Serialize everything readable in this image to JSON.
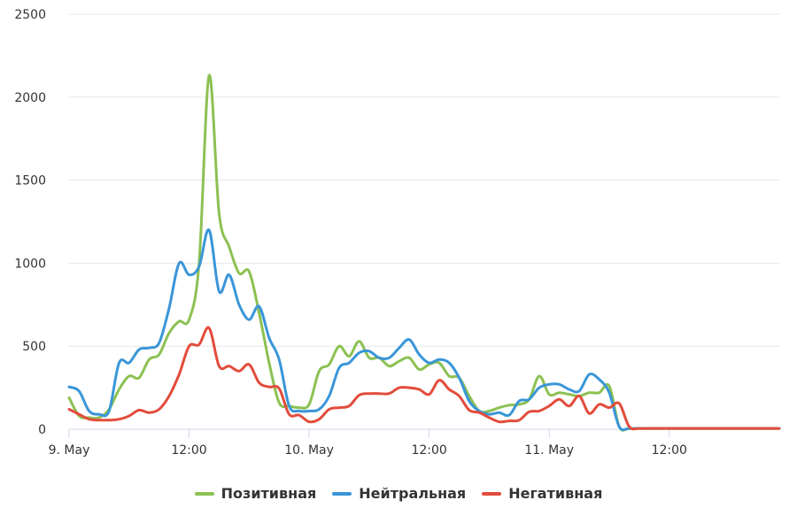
{
  "chart_data": {
    "type": "line",
    "title": "",
    "xlabel": "",
    "ylabel": "",
    "ylim": [
      0,
      2500
    ],
    "yticks": [
      0,
      500,
      1000,
      1500,
      2000,
      2500
    ],
    "xlim": [
      0,
      71
    ],
    "xticks": [
      {
        "x": 0,
        "label": "9. May"
      },
      {
        "x": 12,
        "label": "12:00"
      },
      {
        "x": 24,
        "label": "10. May"
      },
      {
        "x": 36,
        "label": "12:00"
      },
      {
        "x": 48,
        "label": "11. May"
      },
      {
        "x": 60,
        "label": "12:00"
      }
    ],
    "grid": true,
    "legend": "bottom-center",
    "x": [
      0,
      1,
      2,
      3,
      4,
      5,
      6,
      7,
      8,
      9,
      10,
      11,
      12,
      13,
      14,
      15,
      16,
      17,
      18,
      19,
      20,
      21,
      22,
      23,
      24,
      25,
      26,
      27,
      28,
      29,
      30,
      31,
      32,
      33,
      34,
      35,
      36,
      37,
      38,
      39,
      40,
      41,
      42,
      43,
      44,
      45,
      46,
      47,
      48,
      49,
      50,
      51,
      52,
      53,
      54,
      55,
      56,
      57,
      58,
      59,
      60,
      61,
      62,
      63,
      64,
      65,
      66,
      67,
      68,
      69,
      70,
      71
    ],
    "series": [
      {
        "name": "Позитивная",
        "color": "#8cc152",
        "values": [
          190,
          80,
          70,
          70,
          120,
          240,
          320,
          310,
          420,
          450,
          580,
          650,
          660,
          1000,
          2130,
          1300,
          1100,
          940,
          950,
          700,
          400,
          160,
          140,
          130,
          150,
          350,
          390,
          500,
          440,
          530,
          430,
          430,
          380,
          410,
          430,
          360,
          390,
          400,
          320,
          310,
          200,
          110,
          110,
          130,
          145,
          150,
          180,
          320,
          210,
          220,
          210,
          200,
          220,
          220,
          260,
          15,
          5,
          5,
          5,
          5,
          5,
          5,
          5,
          5,
          5,
          5,
          5,
          5,
          5,
          5,
          5,
          5
        ]
      },
      {
        "name": "Нейтральная",
        "color": "#3a96d8",
        "values": [
          255,
          230,
          110,
          90,
          110,
          400,
          400,
          480,
          490,
          520,
          730,
          1000,
          930,
          980,
          1200,
          830,
          930,
          750,
          660,
          740,
          550,
          420,
          140,
          110,
          110,
          120,
          200,
          370,
          400,
          460,
          470,
          430,
          430,
          490,
          540,
          450,
          400,
          420,
          400,
          310,
          170,
          110,
          90,
          100,
          85,
          170,
          180,
          250,
          270,
          270,
          240,
          230,
          330,
          300,
          220,
          15,
          5,
          5,
          5,
          5,
          5,
          5,
          5,
          5,
          5,
          5,
          5,
          5,
          5,
          5,
          5,
          5
        ]
      },
      {
        "name": "Негативная",
        "color": "#e24c3b",
        "values": [
          120,
          90,
          60,
          55,
          55,
          60,
          80,
          115,
          100,
          120,
          200,
          330,
          500,
          510,
          610,
          380,
          380,
          350,
          390,
          280,
          255,
          245,
          90,
          85,
          45,
          60,
          120,
          130,
          140,
          205,
          215,
          215,
          215,
          250,
          250,
          240,
          210,
          295,
          240,
          200,
          115,
          100,
          70,
          45,
          50,
          55,
          105,
          110,
          140,
          180,
          140,
          200,
          95,
          150,
          130,
          155,
          15,
          5,
          5,
          5,
          5,
          5,
          5,
          5,
          5,
          5,
          5,
          5,
          5,
          5,
          5,
          5
        ]
      }
    ]
  }
}
